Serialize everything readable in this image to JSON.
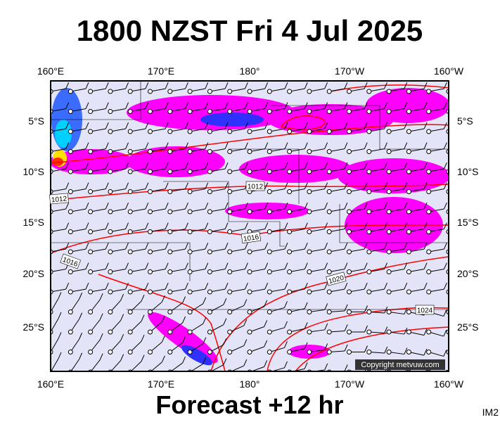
{
  "title": "1800 NZST Fri 4 Jul 2025",
  "map": {
    "longitude_labels_top": [
      "160°E",
      "170°E",
      "180°",
      "170°W",
      "160°W"
    ],
    "longitude_labels_bottom": [
      "160°E",
      "170°E",
      "180°",
      "170°W",
      "160°W"
    ],
    "latitude_labels_left": [
      "5°S",
      "10°S",
      "15°S",
      "20°S",
      "25°S"
    ],
    "latitude_labels_right": [
      "5°S",
      "10°S",
      "15°S",
      "20°S",
      "25°S"
    ],
    "isobar_labels": [
      "1012",
      "1012",
      "1016",
      "1016",
      "1020",
      "1024"
    ],
    "copyright": "Copyright metvuw.com"
  },
  "footer": {
    "forecast": "Forecast +12 hr",
    "code": "IM2"
  }
}
